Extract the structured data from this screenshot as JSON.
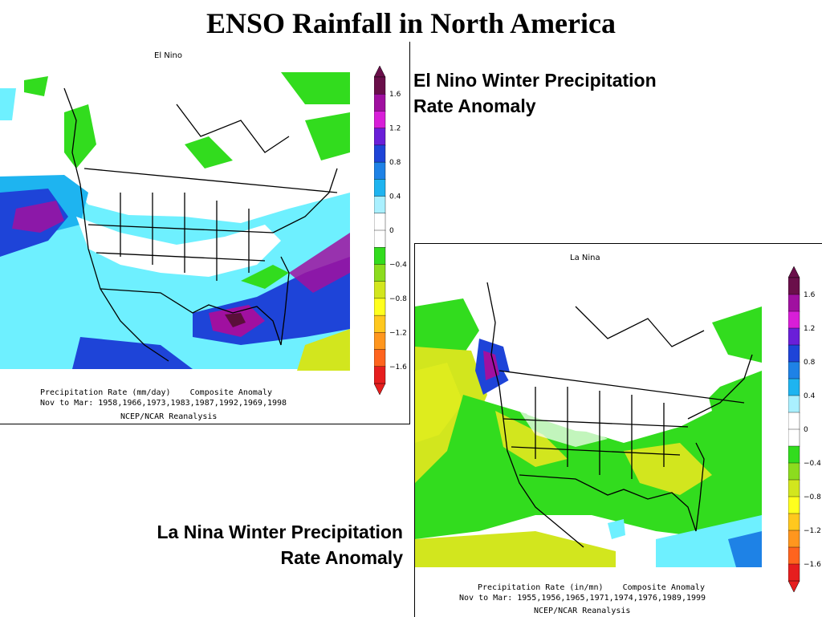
{
  "title": "ENSO Rainfall in North America",
  "panels": {
    "el_nino": {
      "map_title": "El Nino",
      "caption_line1": "El Nino Winter Precipitation",
      "caption_line2": "Rate Anomaly",
      "footer_line1": "Precipitation Rate (mm/day)    Composite Anomaly",
      "footer_line2": "Nov to Mar: 1958,1966,1973,1983,1987,1992,1969,1998",
      "footer_line3": "NCEP/NCAR Reanalysis"
    },
    "la_nina": {
      "map_title": "La Nina",
      "caption_line1": "La Nina Winter Precipitation",
      "caption_line2": "Rate Anomaly",
      "footer_line1": "Precipitation Rate (in/mn)    Composite Anomaly",
      "footer_line2": "Nov to Mar: 1955,1956,1965,1971,1974,1976,1989,1999",
      "footer_line3": "NCEP/NCAR Reanalysis"
    }
  },
  "colorbar": {
    "labels": [
      "1.6",
      "1.2",
      "0.8",
      "0.4",
      "0",
      "−0.4",
      "−0.8",
      "−1.2",
      "−1.6"
    ],
    "colors": [
      "#6a0f4a",
      "#a010a0",
      "#d81ed8",
      "#6a1fd8",
      "#1e44d8",
      "#1e82e6",
      "#1eb4f0",
      "#aaf0ff",
      "#ffffff",
      "#ffffff",
      "#32dc1e",
      "#8cdc1e",
      "#d2e61e",
      "#ffff1e",
      "#ffc81e",
      "#ff961e",
      "#ff641e",
      "#e61e1e"
    ]
  },
  "colors": {
    "ocean_bg": "#ffffff",
    "land_bg": "#ffffff",
    "anomaly_wet_strong": "#a010a0",
    "anomaly_wet": "#1e44d8",
    "anomaly_moist": "#1eb4f0",
    "anomaly_light": "#6ef0ff",
    "anomaly_dry": "#32dc1e",
    "anomaly_dryer": "#d2e61e"
  }
}
